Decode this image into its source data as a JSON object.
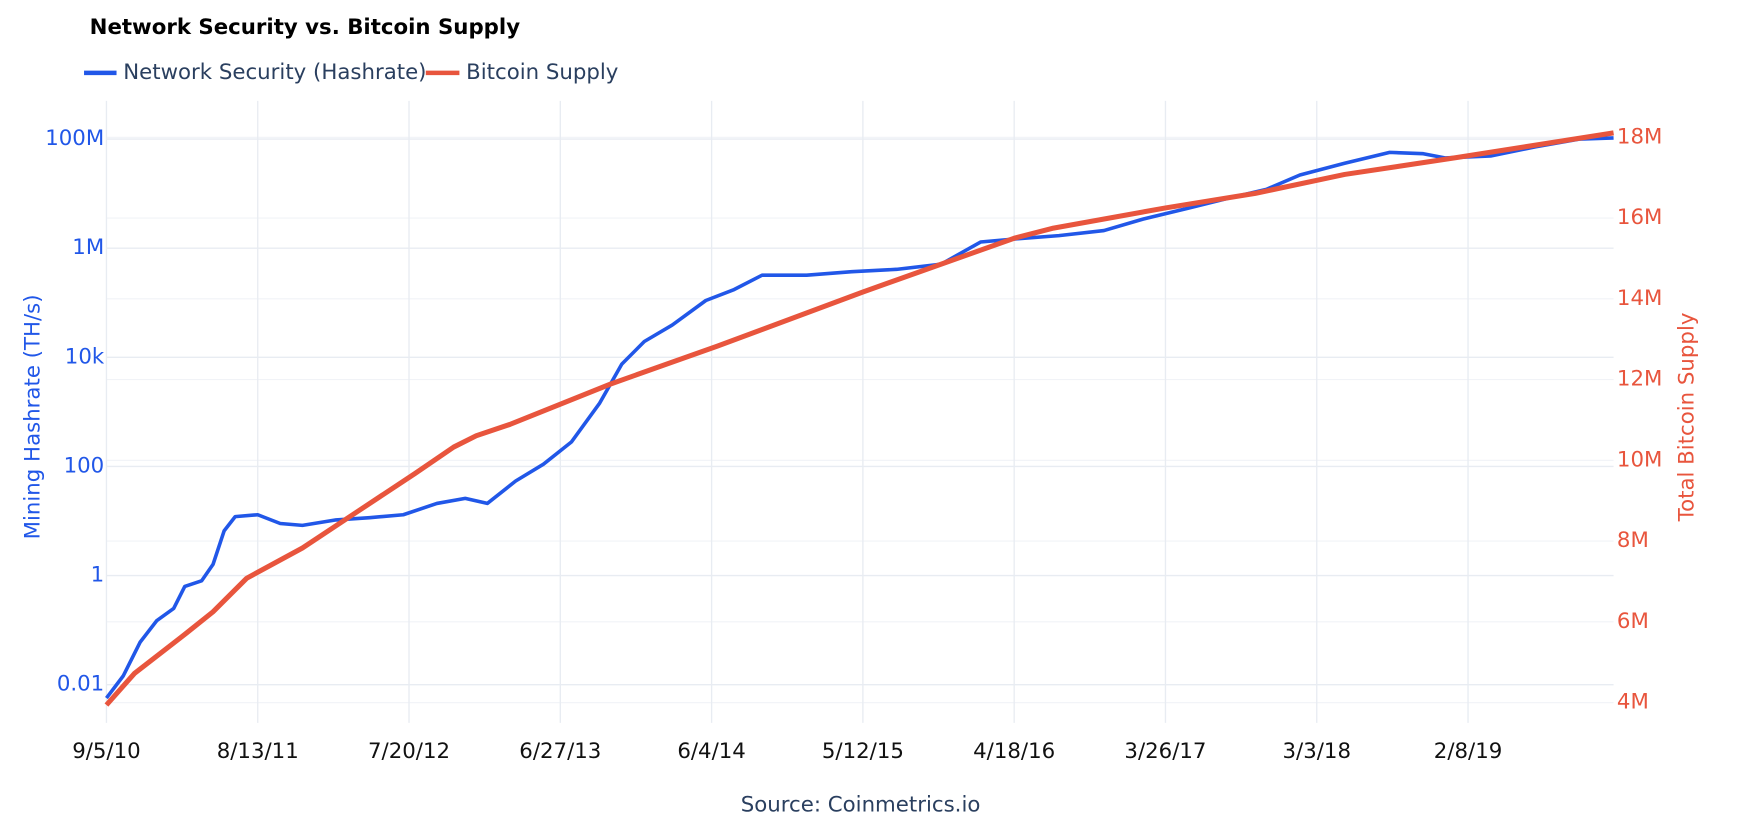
{
  "chart_data": {
    "type": "line",
    "title": "Network Security vs. Bitcoin Supply",
    "source": "Source: Coinmetrics.io",
    "ylabel": "Mining Hashrate (TH/s)",
    "y2label": "Total Bitcoin Supply",
    "ylog": true,
    "grid": true,
    "legend": "top-left",
    "xlim": [
      "2010-09-05",
      "2020-01-03"
    ],
    "xticks": [
      {
        "value": "2010-09-05",
        "label": "9/5/10"
      },
      {
        "value": "2011-08-13",
        "label": "8/13/11"
      },
      {
        "value": "2012-07-20",
        "label": "7/20/12"
      },
      {
        "value": "2013-06-27",
        "label": "6/27/13"
      },
      {
        "value": "2014-06-04",
        "label": "6/4/14"
      },
      {
        "value": "2015-05-12",
        "label": "5/12/15"
      },
      {
        "value": "2016-04-18",
        "label": "4/18/16"
      },
      {
        "value": "2017-03-26",
        "label": "3/26/17"
      },
      {
        "value": "2018-03-03",
        "label": "3/3/18"
      },
      {
        "value": "2019-02-08",
        "label": "2/8/19"
      }
    ],
    "ylim": [
      0.002,
      500000000
    ],
    "yticks": [
      0.01,
      1,
      100,
      {
        "value": 10000,
        "label": "10k"
      },
      {
        "value": 1000000,
        "label": "1M"
      },
      {
        "value": 100000000,
        "label": "100M"
      }
    ],
    "y2lim": [
      3500000,
      18900000
    ],
    "y2ticks": [
      {
        "value": 4000000,
        "label": "4M"
      },
      {
        "value": 6000000,
        "label": "6M"
      },
      {
        "value": 8000000,
        "label": "8M"
      },
      {
        "value": 10000000,
        "label": "10M"
      },
      {
        "value": 12000000,
        "label": "12M"
      },
      {
        "value": 14000000,
        "label": "14M"
      },
      {
        "value": 16000000,
        "label": "16M"
      },
      {
        "value": 18000000,
        "label": "18M"
      }
    ],
    "series": [
      {
        "name": "Network Security (Hashrate)",
        "color": "#2157e8",
        "x": [
          "2010-09-05",
          "2010-10-13",
          "2010-11-20",
          "2010-12-28",
          "2011-02-04",
          "2011-03-01",
          "2011-04-08",
          "2011-05-04",
          "2011-05-29",
          "2011-06-23",
          "2011-08-13",
          "2011-10-03",
          "2011-11-22",
          "2012-02-06",
          "2012-04-22",
          "2012-07-07",
          "2012-09-21",
          "2012-11-24",
          "2013-01-13",
          "2013-03-18",
          "2013-05-20",
          "2013-07-22",
          "2013-09-24",
          "2013-11-13",
          "2014-01-03",
          "2014-03-07",
          "2014-05-22",
          "2014-07-25",
          "2014-09-26",
          "2015-01-05",
          "2015-04-17",
          "2015-07-27",
          "2015-11-05",
          "2016-02-02",
          "2016-05-01",
          "2016-07-28",
          "2016-11-07",
          "2017-02-03",
          "2017-05-16",
          "2017-08-25",
          "2017-11-09",
          "2018-01-24",
          "2018-05-05",
          "2018-08-15",
          "2018-10-30",
          "2018-12-19",
          "2019-03-31",
          "2019-07-10",
          "2019-10-19",
          "2020-01-03"
        ],
        "values": [
          0.0057,
          0.0145,
          0.06,
          0.15,
          0.25,
          0.63,
          0.8,
          1.6,
          6.6,
          12,
          13,
          9,
          8.3,
          10.5,
          11.5,
          13,
          21,
          26,
          21,
          54,
          110,
          280,
          1450,
          7500,
          19500,
          39000,
          110000,
          175000,
          320000,
          320000,
          370000,
          410000,
          510000,
          1300000,
          1500000,
          1700000,
          2100000,
          3400000,
          5400000,
          8600000,
          12000000,
          22000000,
          36000000,
          57000000,
          54000000,
          45000000,
          49000000,
          72000000,
          100000000,
          105000000
        ]
      },
      {
        "name": "Bitcoin Supply",
        "color": "#e8553d",
        "axis": "y2",
        "x": [
          "2010-09-05",
          "2010-11-07",
          "2011-03-01",
          "2011-05-04",
          "2011-07-19",
          "2011-11-22",
          "2012-03-28",
          "2012-08-02",
          "2012-10-29",
          "2012-12-19",
          "2013-03-05",
          "2013-10-19",
          "2014-06-17",
          "2015-05-12",
          "2016-04-18",
          "2016-07-16",
          "2017-03-26",
          "2017-10-15",
          "2018-05-05",
          "2019-01-14",
          "2020-01-03"
        ],
        "values": [
          3940000,
          4720000,
          5690000,
          6250000,
          7080000,
          7830000,
          8750000,
          9670000,
          10330000,
          10610000,
          10890000,
          11890000,
          12830000,
          14170000,
          15500000,
          15750000,
          16250000,
          16610000,
          17080000,
          17500000,
          18110000
        ]
      }
    ]
  }
}
